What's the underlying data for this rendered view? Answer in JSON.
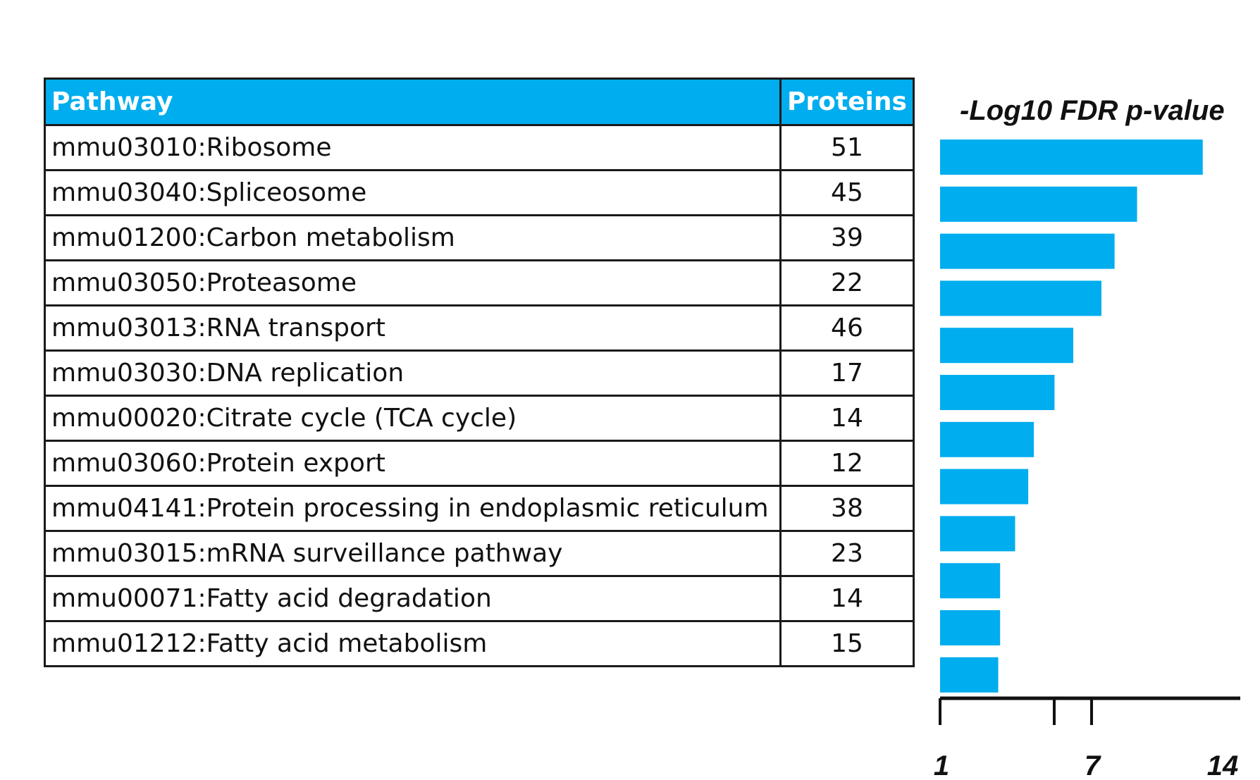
{
  "table": {
    "headers": [
      "Pathway",
      "Proteins"
    ],
    "rows": [
      {
        "pathway": "mmu03010:Ribosome",
        "proteins": "51"
      },
      {
        "pathway": "mmu03040:Spliceosome",
        "proteins": "45"
      },
      {
        "pathway": "mmu01200:Carbon metabolism",
        "proteins": "39"
      },
      {
        "pathway": "mmu03050:Proteasome",
        "proteins": "22"
      },
      {
        "pathway": "mmu03013:RNA transport",
        "proteins": "46"
      },
      {
        "pathway": "mmu03030:DNA replication",
        "proteins": "17"
      },
      {
        "pathway": "mmu00020:Citrate cycle (TCA cycle)",
        "proteins": "14"
      },
      {
        "pathway": "mmu03060:Protein export",
        "proteins": "12"
      },
      {
        "pathway": "mmu04141:Protein processing in endoplasmic reticulum",
        "proteins": "38"
      },
      {
        "pathway": "mmu03015:mRNA surveillance pathway",
        "proteins": "23"
      },
      {
        "pathway": "mmu00071:Fatty acid degradation",
        "proteins": "14"
      },
      {
        "pathway": "mmu01212:Fatty acid metabolism",
        "proteins": "15"
      }
    ]
  },
  "chart_data": {
    "type": "bar",
    "orientation": "horizontal",
    "title": "-Log10 FDR p-value",
    "categories": [
      "mmu03010:Ribosome",
      "mmu03040:Spliceosome",
      "mmu01200:Carbon metabolism",
      "mmu03050:Proteasome",
      "mmu03013:RNA transport",
      "mmu03030:DNA replication",
      "mmu00020:Citrate cycle (TCA cycle)",
      "mmu03060:Protein export",
      "mmu04141:Protein processing in endoplasmic reticulum",
      "mmu03015:mRNA surveillance pathway",
      "mmu00071:Fatty acid degradation",
      "mmu01212:Fatty acid metabolism"
    ],
    "values": [
      15.0,
      11.5,
      10.3,
      9.6,
      8.1,
      7.1,
      6.0,
      5.7,
      5.0,
      4.2,
      4.2,
      4.1
    ],
    "xlim": [
      1,
      17
    ],
    "ticks": [
      1,
      7,
      14
    ],
    "tick_labels": [
      "1",
      "7",
      "14"
    ],
    "bar_color": "#00adee",
    "grid": false
  },
  "colors": {
    "header_bg": "#00adee",
    "header_text": "#ffffff",
    "border": "#1a1a1a"
  }
}
